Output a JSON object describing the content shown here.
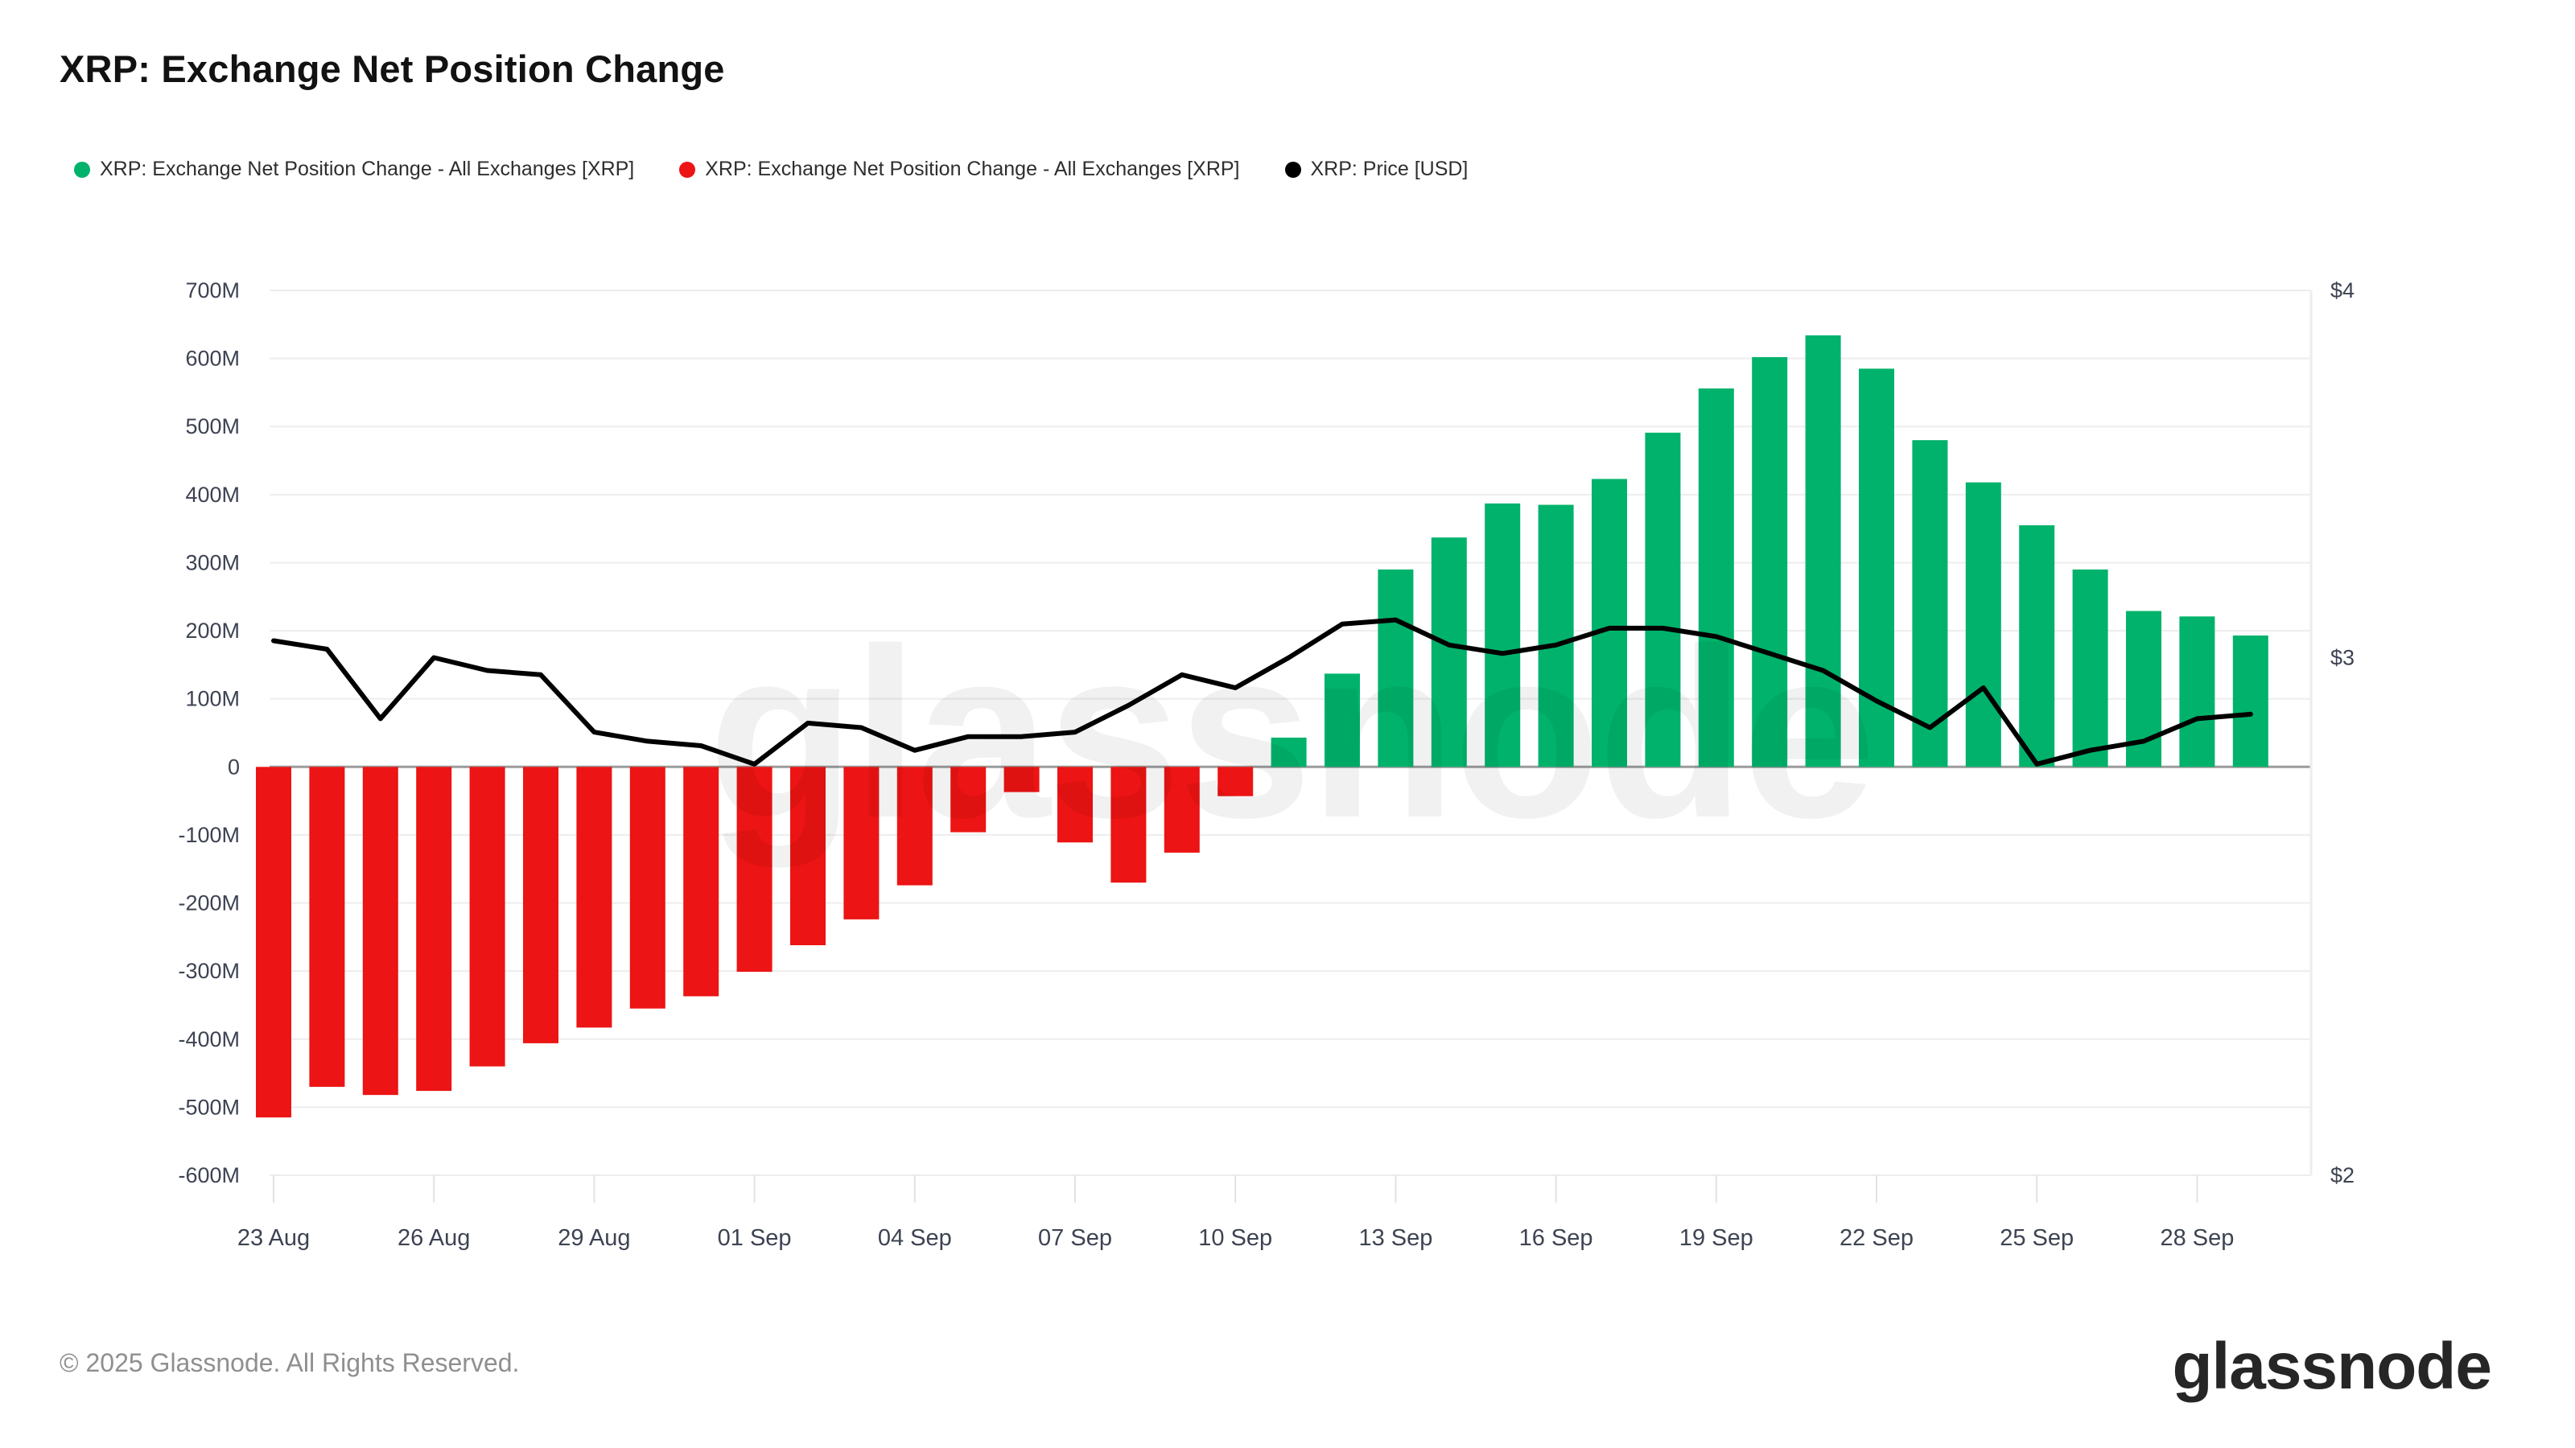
{
  "header": {
    "title": "XRP: Exchange Net Position Change"
  },
  "legend": [
    {
      "label": "XRP: Exchange Net Position Change - All Exchanges [XRP]",
      "color": "#00b26b"
    },
    {
      "label": "XRP: Exchange Net Position Change - All Exchanges [XRP]",
      "color": "#ec1414"
    },
    {
      "label": "XRP: Price [USD]",
      "color": "#000000"
    }
  ],
  "chart_data": {
    "type": "mixed",
    "x": [
      "23 Aug",
      "24 Aug",
      "25 Aug",
      "26 Aug",
      "27 Aug",
      "28 Aug",
      "29 Aug",
      "30 Aug",
      "31 Aug",
      "01 Sep",
      "02 Sep",
      "03 Sep",
      "04 Sep",
      "05 Sep",
      "06 Sep",
      "07 Sep",
      "08 Sep",
      "09 Sep",
      "10 Sep",
      "11 Sep",
      "12 Sep",
      "13 Sep",
      "14 Sep",
      "15 Sep",
      "16 Sep",
      "17 Sep",
      "18 Sep",
      "19 Sep",
      "20 Sep",
      "21 Sep",
      "22 Sep",
      "23 Sep",
      "24 Sep",
      "25 Sep",
      "26 Sep",
      "27 Sep",
      "28 Sep",
      "29 Sep"
    ],
    "x_tick_labels": [
      "23 Aug",
      "26 Aug",
      "29 Aug",
      "01 Sep",
      "04 Sep",
      "07 Sep",
      "10 Sep",
      "13 Sep",
      "16 Sep",
      "19 Sep",
      "22 Sep",
      "25 Sep",
      "28 Sep"
    ],
    "x_tick_every_days": 3,
    "series": [
      {
        "name": "XRP: Exchange Net Position Change - All Exchanges [XRP]",
        "type": "bar",
        "axis": "left",
        "unit": "XRP (millions)",
        "positive_color": "#00b26b",
        "negative_color": "#ec1414",
        "values_millions": [
          -515,
          -470,
          -482,
          -476,
          -440,
          -406,
          -383,
          -355,
          -337,
          -301,
          -262,
          -224,
          -174,
          -96,
          -37,
          -111,
          -170,
          -126,
          -43,
          43,
          137,
          290,
          337,
          387,
          385,
          423,
          491,
          556,
          602,
          634,
          585,
          480,
          418,
          355,
          290,
          229,
          221,
          193
        ]
      },
      {
        "name": "XRP: Price [USD]",
        "type": "line",
        "axis": "right",
        "color": "#000000",
        "values_usd": [
          3.04,
          3.02,
          2.86,
          3.0,
          2.97,
          2.96,
          2.83,
          2.81,
          2.8,
          2.76,
          2.85,
          2.84,
          2.79,
          2.82,
          2.82,
          2.83,
          2.89,
          2.96,
          2.93,
          3.0,
          3.08,
          3.09,
          3.03,
          3.01,
          3.03,
          3.07,
          3.07,
          3.05,
          3.01,
          2.97,
          2.9,
          2.84,
          2.93,
          2.76,
          2.79,
          2.81,
          2.86,
          2.87
        ]
      }
    ],
    "left_axis": {
      "tick_labels": [
        "700M",
        "600M",
        "500M",
        "400M",
        "300M",
        "200M",
        "100M",
        "0",
        "-100M",
        "-200M",
        "-300M",
        "-400M",
        "-500M",
        "-600M"
      ],
      "range_millions": [
        -600,
        700
      ],
      "grid": true
    },
    "right_axis": {
      "tick_labels": [
        "$4",
        "$3",
        "$2"
      ],
      "tick_values": [
        4,
        3,
        2
      ],
      "scale": "log",
      "range_usd": [
        2,
        4
      ]
    },
    "title": "XRP: Exchange Net Position Change",
    "legend_position": "top-left",
    "colors": {
      "grid": "#ededed",
      "zero_line": "#9b9b9b",
      "axis_text": "#3d4352",
      "tick_mark": "#e2e2e2"
    }
  },
  "watermark": "glassnode",
  "footer": {
    "copyright": "© 2025 Glassnode. All Rights Reserved."
  },
  "logo": {
    "text": "glassnode"
  }
}
